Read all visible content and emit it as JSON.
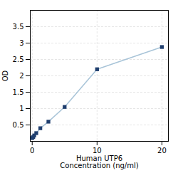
{
  "chart_data": {
    "type": "line",
    "x": [
      0,
      0.156,
      0.313,
      0.625,
      1.25,
      2.5,
      5,
      10,
      20
    ],
    "series": [
      {
        "type": "line",
        "color": "#a8c4d8",
        "values": [
          0.1,
          0.13,
          0.18,
          0.25,
          0.4,
          0.6,
          1.05,
          2.2,
          2.88
        ]
      },
      {
        "type": "scatter",
        "color": "#1f3e6e",
        "marker": "square",
        "values": [
          0.1,
          0.13,
          0.18,
          0.25,
          0.4,
          0.6,
          1.05,
          2.2,
          2.88
        ]
      }
    ],
    "xlabel": "Human UTP6\nConcentration (ng/ml)",
    "ylabel": "OD",
    "xlim": [
      -0.3,
      21
    ],
    "ylim": [
      0,
      4
    ],
    "xticks": [
      0,
      10,
      20
    ],
    "yticks": [
      0.5,
      1,
      1.5,
      2,
      2.5,
      3,
      3.5
    ],
    "grid": true
  }
}
